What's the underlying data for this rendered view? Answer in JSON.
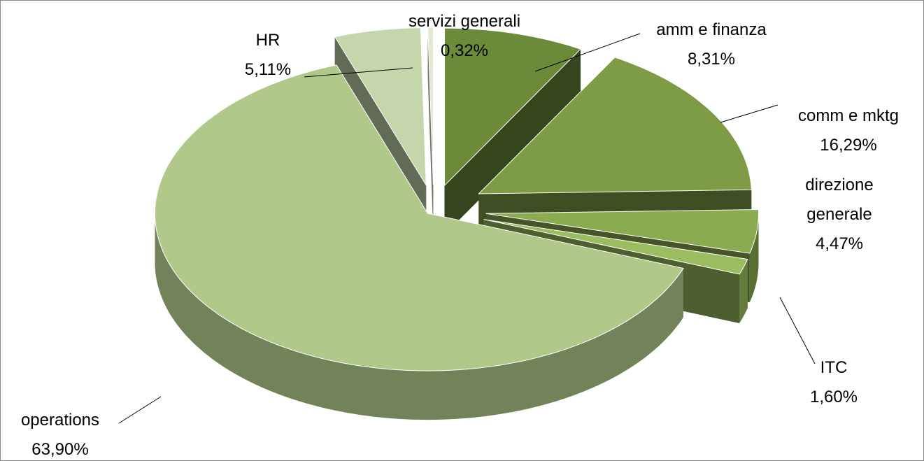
{
  "chart_data": {
    "type": "pie3d",
    "categories": [
      "amm e finanza",
      "comm e mktg",
      "direzione generale",
      "ITC",
      "operations",
      "HR",
      "servizi generali"
    ],
    "values": [
      8.31,
      16.29,
      4.47,
      1.6,
      63.9,
      5.11,
      0.32
    ],
    "value_labels": [
      "8,31%",
      "16,29%",
      "4,47%",
      "1,60%",
      "63,90%",
      "5,11%",
      "0,32%"
    ],
    "colors": [
      "#6b8a3a",
      "#7d9c45",
      "#8aab50",
      "#9bbd5f",
      "#b0c98a",
      "#c5d7aa",
      "#e0e9d2"
    ]
  }
}
